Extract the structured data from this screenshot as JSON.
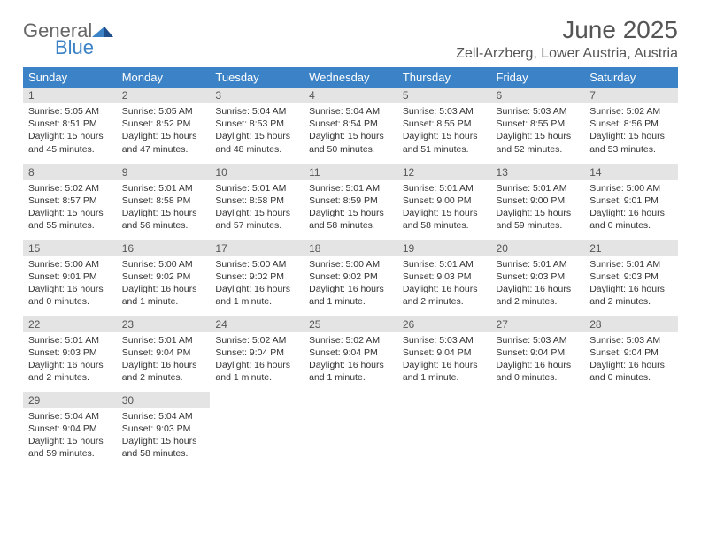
{
  "brand": {
    "text1": "General",
    "text2": "Blue",
    "color_general": "#666666",
    "color_blue": "#3b82c7"
  },
  "header": {
    "title": "June 2025",
    "location": "Zell-Arzberg, Lower Austria, Austria"
  },
  "colors": {
    "header_bg": "#3b82c7",
    "header_fg": "#ffffff",
    "daynum_bg": "#e4e4e4",
    "row_border": "#3b82c7"
  },
  "weekdays": [
    "Sunday",
    "Monday",
    "Tuesday",
    "Wednesday",
    "Thursday",
    "Friday",
    "Saturday"
  ],
  "weeks": [
    [
      {
        "n": "1",
        "sr": "Sunrise: 5:05 AM",
        "ss": "Sunset: 8:51 PM",
        "d1": "Daylight: 15 hours",
        "d2": "and 45 minutes."
      },
      {
        "n": "2",
        "sr": "Sunrise: 5:05 AM",
        "ss": "Sunset: 8:52 PM",
        "d1": "Daylight: 15 hours",
        "d2": "and 47 minutes."
      },
      {
        "n": "3",
        "sr": "Sunrise: 5:04 AM",
        "ss": "Sunset: 8:53 PM",
        "d1": "Daylight: 15 hours",
        "d2": "and 48 minutes."
      },
      {
        "n": "4",
        "sr": "Sunrise: 5:04 AM",
        "ss": "Sunset: 8:54 PM",
        "d1": "Daylight: 15 hours",
        "d2": "and 50 minutes."
      },
      {
        "n": "5",
        "sr": "Sunrise: 5:03 AM",
        "ss": "Sunset: 8:55 PM",
        "d1": "Daylight: 15 hours",
        "d2": "and 51 minutes."
      },
      {
        "n": "6",
        "sr": "Sunrise: 5:03 AM",
        "ss": "Sunset: 8:55 PM",
        "d1": "Daylight: 15 hours",
        "d2": "and 52 minutes."
      },
      {
        "n": "7",
        "sr": "Sunrise: 5:02 AM",
        "ss": "Sunset: 8:56 PM",
        "d1": "Daylight: 15 hours",
        "d2": "and 53 minutes."
      }
    ],
    [
      {
        "n": "8",
        "sr": "Sunrise: 5:02 AM",
        "ss": "Sunset: 8:57 PM",
        "d1": "Daylight: 15 hours",
        "d2": "and 55 minutes."
      },
      {
        "n": "9",
        "sr": "Sunrise: 5:01 AM",
        "ss": "Sunset: 8:58 PM",
        "d1": "Daylight: 15 hours",
        "d2": "and 56 minutes."
      },
      {
        "n": "10",
        "sr": "Sunrise: 5:01 AM",
        "ss": "Sunset: 8:58 PM",
        "d1": "Daylight: 15 hours",
        "d2": "and 57 minutes."
      },
      {
        "n": "11",
        "sr": "Sunrise: 5:01 AM",
        "ss": "Sunset: 8:59 PM",
        "d1": "Daylight: 15 hours",
        "d2": "and 58 minutes."
      },
      {
        "n": "12",
        "sr": "Sunrise: 5:01 AM",
        "ss": "Sunset: 9:00 PM",
        "d1": "Daylight: 15 hours",
        "d2": "and 58 minutes."
      },
      {
        "n": "13",
        "sr": "Sunrise: 5:01 AM",
        "ss": "Sunset: 9:00 PM",
        "d1": "Daylight: 15 hours",
        "d2": "and 59 minutes."
      },
      {
        "n": "14",
        "sr": "Sunrise: 5:00 AM",
        "ss": "Sunset: 9:01 PM",
        "d1": "Daylight: 16 hours",
        "d2": "and 0 minutes."
      }
    ],
    [
      {
        "n": "15",
        "sr": "Sunrise: 5:00 AM",
        "ss": "Sunset: 9:01 PM",
        "d1": "Daylight: 16 hours",
        "d2": "and 0 minutes."
      },
      {
        "n": "16",
        "sr": "Sunrise: 5:00 AM",
        "ss": "Sunset: 9:02 PM",
        "d1": "Daylight: 16 hours",
        "d2": "and 1 minute."
      },
      {
        "n": "17",
        "sr": "Sunrise: 5:00 AM",
        "ss": "Sunset: 9:02 PM",
        "d1": "Daylight: 16 hours",
        "d2": "and 1 minute."
      },
      {
        "n": "18",
        "sr": "Sunrise: 5:00 AM",
        "ss": "Sunset: 9:02 PM",
        "d1": "Daylight: 16 hours",
        "d2": "and 1 minute."
      },
      {
        "n": "19",
        "sr": "Sunrise: 5:01 AM",
        "ss": "Sunset: 9:03 PM",
        "d1": "Daylight: 16 hours",
        "d2": "and 2 minutes."
      },
      {
        "n": "20",
        "sr": "Sunrise: 5:01 AM",
        "ss": "Sunset: 9:03 PM",
        "d1": "Daylight: 16 hours",
        "d2": "and 2 minutes."
      },
      {
        "n": "21",
        "sr": "Sunrise: 5:01 AM",
        "ss": "Sunset: 9:03 PM",
        "d1": "Daylight: 16 hours",
        "d2": "and 2 minutes."
      }
    ],
    [
      {
        "n": "22",
        "sr": "Sunrise: 5:01 AM",
        "ss": "Sunset: 9:03 PM",
        "d1": "Daylight: 16 hours",
        "d2": "and 2 minutes."
      },
      {
        "n": "23",
        "sr": "Sunrise: 5:01 AM",
        "ss": "Sunset: 9:04 PM",
        "d1": "Daylight: 16 hours",
        "d2": "and 2 minutes."
      },
      {
        "n": "24",
        "sr": "Sunrise: 5:02 AM",
        "ss": "Sunset: 9:04 PM",
        "d1": "Daylight: 16 hours",
        "d2": "and 1 minute."
      },
      {
        "n": "25",
        "sr": "Sunrise: 5:02 AM",
        "ss": "Sunset: 9:04 PM",
        "d1": "Daylight: 16 hours",
        "d2": "and 1 minute."
      },
      {
        "n": "26",
        "sr": "Sunrise: 5:03 AM",
        "ss": "Sunset: 9:04 PM",
        "d1": "Daylight: 16 hours",
        "d2": "and 1 minute."
      },
      {
        "n": "27",
        "sr": "Sunrise: 5:03 AM",
        "ss": "Sunset: 9:04 PM",
        "d1": "Daylight: 16 hours",
        "d2": "and 0 minutes."
      },
      {
        "n": "28",
        "sr": "Sunrise: 5:03 AM",
        "ss": "Sunset: 9:04 PM",
        "d1": "Daylight: 16 hours",
        "d2": "and 0 minutes."
      }
    ],
    [
      {
        "n": "29",
        "sr": "Sunrise: 5:04 AM",
        "ss": "Sunset: 9:04 PM",
        "d1": "Daylight: 15 hours",
        "d2": "and 59 minutes."
      },
      {
        "n": "30",
        "sr": "Sunrise: 5:04 AM",
        "ss": "Sunset: 9:03 PM",
        "d1": "Daylight: 15 hours",
        "d2": "and 58 minutes."
      },
      {
        "empty": true
      },
      {
        "empty": true
      },
      {
        "empty": true
      },
      {
        "empty": true
      },
      {
        "empty": true
      }
    ]
  ]
}
